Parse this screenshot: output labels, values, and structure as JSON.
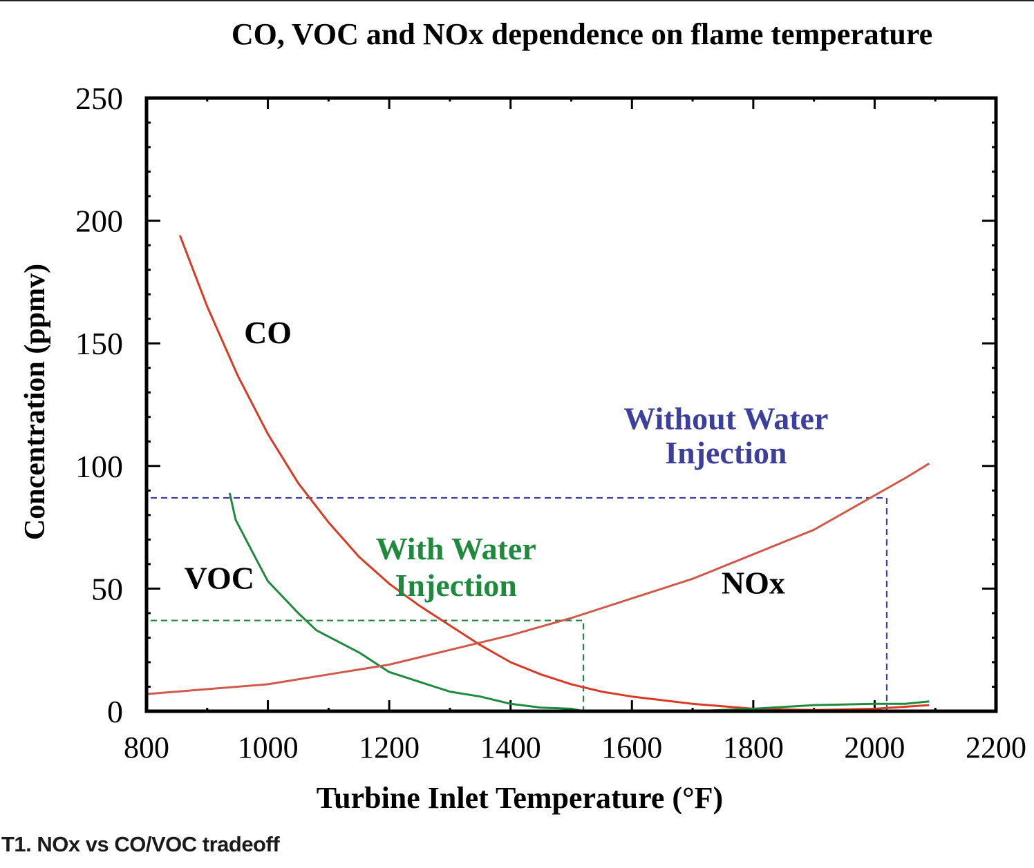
{
  "caption": "T1. NOx vs CO/VOC tradeoff",
  "chart_data": {
    "type": "line",
    "title": "CO, VOC and NOx dependence on flame temperature",
    "xlabel": "Turbine Inlet Temperature (°F)",
    "ylabel": "Concentration (ppmv)",
    "xlim": [
      800,
      2200
    ],
    "ylim": [
      0,
      250
    ],
    "xticks": [
      800,
      1000,
      1200,
      1400,
      1600,
      1800,
      2000,
      2200
    ],
    "yticks": [
      0,
      50,
      100,
      150,
      200,
      250
    ],
    "grid": false,
    "colors": {
      "co": "#d83a24",
      "nox": "#cf5a4a",
      "voc": "#1d8a3e",
      "with_water": "#1f8a3e",
      "without_water": "#3c3f9c",
      "frame": "#000000"
    },
    "series": [
      {
        "name": "CO",
        "key": "co",
        "points": [
          [
            855,
            194
          ],
          [
            900,
            165
          ],
          [
            950,
            137
          ],
          [
            1000,
            113
          ],
          [
            1050,
            93
          ],
          [
            1100,
            77
          ],
          [
            1150,
            63
          ],
          [
            1200,
            52
          ],
          [
            1250,
            43
          ],
          [
            1300,
            35
          ],
          [
            1350,
            27
          ],
          [
            1400,
            20
          ],
          [
            1450,
            15
          ],
          [
            1500,
            11
          ],
          [
            1550,
            8
          ],
          [
            1600,
            6
          ],
          [
            1700,
            3
          ],
          [
            1800,
            1
          ],
          [
            1900,
            0.5
          ],
          [
            2000,
            1
          ],
          [
            2090,
            2.5
          ]
        ]
      },
      {
        "name": "VOC",
        "key": "voc",
        "points": [
          [
            937,
            89
          ],
          [
            947,
            78
          ],
          [
            985,
            60
          ],
          [
            1000,
            53
          ],
          [
            1050,
            40
          ],
          [
            1080,
            33
          ],
          [
            1150,
            24
          ],
          [
            1200,
            16
          ],
          [
            1250,
            12
          ],
          [
            1300,
            8
          ],
          [
            1350,
            6
          ],
          [
            1400,
            3
          ],
          [
            1450,
            1.5
          ],
          [
            1500,
            1
          ],
          [
            1520,
            0
          ],
          [
            1600,
            0
          ],
          [
            1700,
            0
          ],
          [
            1800,
            1
          ],
          [
            1900,
            2.5
          ],
          [
            2000,
            3
          ],
          [
            2050,
            3
          ],
          [
            2090,
            4
          ]
        ]
      },
      {
        "name": "NOx",
        "key": "nox",
        "points": [
          [
            800,
            7
          ],
          [
            900,
            9
          ],
          [
            1000,
            11
          ],
          [
            1100,
            15
          ],
          [
            1200,
            19
          ],
          [
            1300,
            25
          ],
          [
            1400,
            31
          ],
          [
            1500,
            38
          ],
          [
            1600,
            46
          ],
          [
            1700,
            54
          ],
          [
            1800,
            64
          ],
          [
            1900,
            74
          ],
          [
            2000,
            88
          ],
          [
            2050,
            95
          ],
          [
            2090,
            101
          ]
        ]
      }
    ],
    "reference_lines": [
      {
        "name": "With Water Injection",
        "key": "with_water",
        "y": 37,
        "x_end": 1520
      },
      {
        "name": "Without Water Injection",
        "key": "without_water",
        "y": 87,
        "x_end": 2020
      }
    ],
    "annotations": [
      {
        "text": "CO",
        "x": 1000,
        "y": 150,
        "key": "black"
      },
      {
        "text": "VOC",
        "x": 920,
        "y": 50,
        "key": "black"
      },
      {
        "text": "NOx",
        "x": 1800,
        "y": 48,
        "key": "black"
      },
      {
        "text": "With Water",
        "x": 1310,
        "y": 62,
        "key": "with_water"
      },
      {
        "text": "Injection",
        "x": 1310,
        "y": 47,
        "key": "with_water"
      },
      {
        "text": "Without Water",
        "x": 1755,
        "y": 115,
        "key": "without_water"
      },
      {
        "text": "Injection",
        "x": 1755,
        "y": 101,
        "key": "without_water"
      }
    ]
  }
}
